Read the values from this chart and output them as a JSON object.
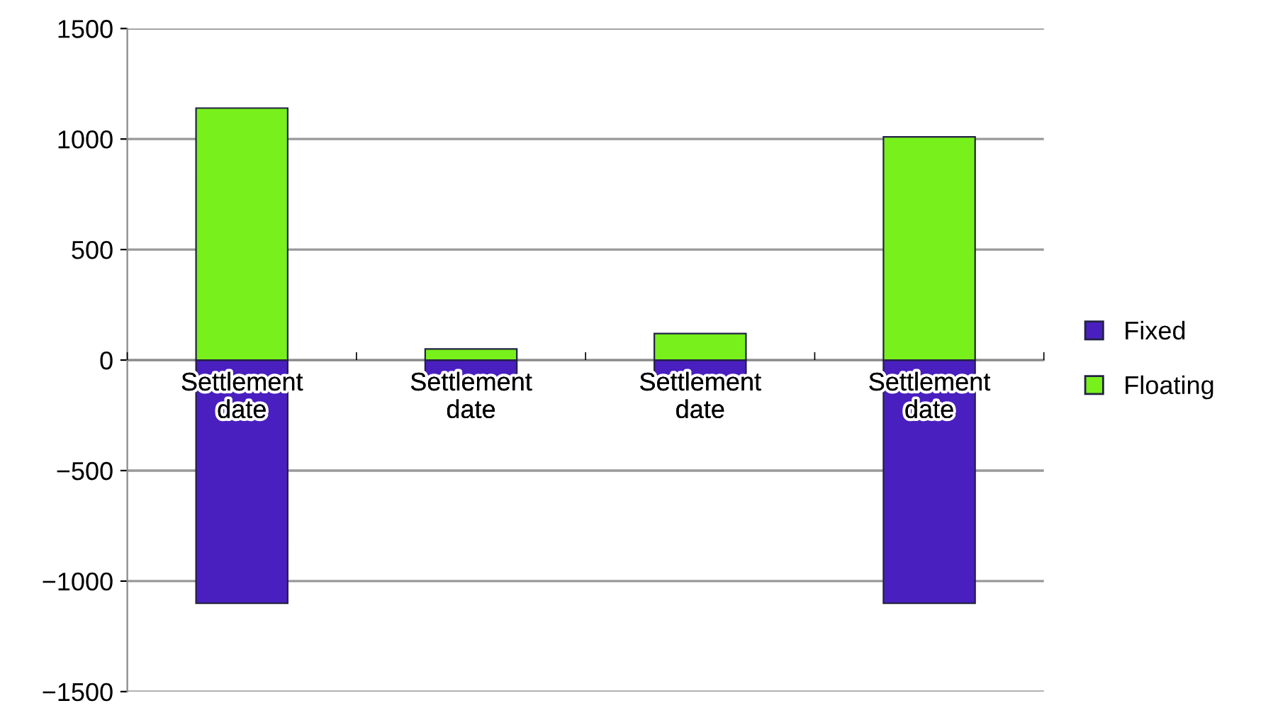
{
  "chart_data": {
    "type": "bar",
    "stacked": true,
    "categories": [
      "Settlement date",
      "Settlement date",
      "Settlement date",
      "Settlement date"
    ],
    "series": [
      {
        "name": "Fixed",
        "color": "#4a1fc0",
        "values": [
          -1100,
          -90,
          -90,
          -1100
        ]
      },
      {
        "name": "Floating",
        "color": "#78f01c",
        "values": [
          1140,
          50,
          120,
          1010
        ]
      }
    ],
    "ylim": [
      -1500,
      1500
    ],
    "yticks": [
      {
        "value": -1500,
        "label": "−1500"
      },
      {
        "value": -1000,
        "label": "−1000"
      },
      {
        "value": -500,
        "label": "−500"
      },
      0,
      500,
      1000,
      1500
    ],
    "grid": "y",
    "legend": "right"
  }
}
